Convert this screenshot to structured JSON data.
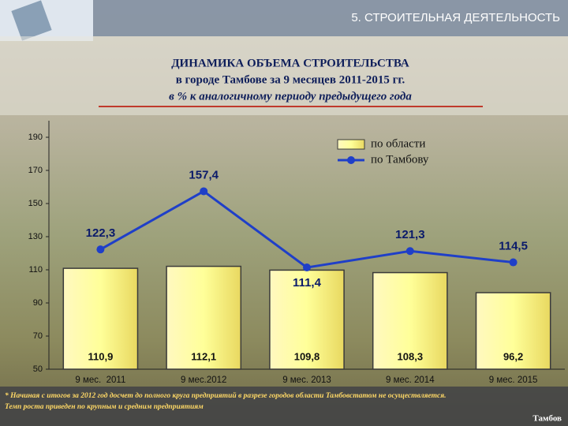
{
  "header": "5.   СТРОИТЕЛЬНАЯ ДЕЯТЕЛЬНОСТЬ",
  "footnote": [
    "* Начиная с итогов за 2012 год досчет до полного круга предприятий в разрезе городов области Тамбовстатом не осуществляется.",
    "Темп роста приведен по крупным и средним предприятиям"
  ],
  "city": "Тамбов",
  "chart_data": {
    "type": "bar",
    "title": "ДИНАМИКА ОБЪЕМА СТРОИТЕЛЬСТВА",
    "subtitle": "в городе Тамбове за 9 месяцев 2011-2015 гг.",
    "note": "в % к аналогичному периоду предыдущего года",
    "categories": [
      "9 мес.  2011",
      "9 мес.2012",
      "9 мес. 2013",
      "9 мес. 2014",
      "9 мес. 2015"
    ],
    "series": [
      {
        "name": "по области",
        "type": "bar",
        "color": "#ffff99",
        "values": [
          110.9,
          112.1,
          109.8,
          108.3,
          96.2
        ],
        "value_labels": [
          "110,9",
          "112,1",
          "109,8",
          "108,3",
          "96,2"
        ]
      },
      {
        "name": "по Тамбову",
        "type": "line",
        "color": "#1f3fc8",
        "values": [
          122.3,
          157.4,
          111.4,
          121.3,
          114.5
        ],
        "value_labels": [
          "122,3",
          "157,4",
          "111,4",
          "121,3",
          "114,5"
        ]
      }
    ],
    "ylim": [
      50,
      200
    ],
    "yticks": [
      50,
      70,
      90,
      110,
      130,
      150,
      170,
      190
    ],
    "legend": "top-right"
  }
}
